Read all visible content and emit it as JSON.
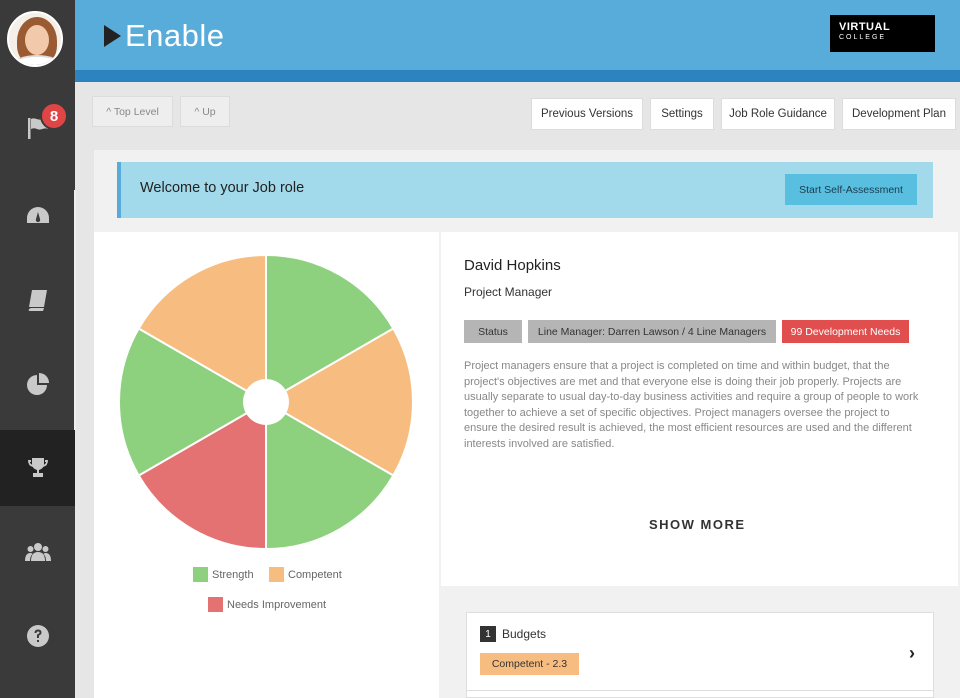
{
  "app": {
    "name": "Enable",
    "logo_line1": "VIRTUAL",
    "logo_line2": "COLLEGE"
  },
  "sidebar": {
    "notifications_count": "8",
    "items": [
      {
        "icon": "flag-icon"
      },
      {
        "icon": "dashboard-gauge-icon"
      },
      {
        "icon": "book-icon"
      },
      {
        "icon": "pie-chart-icon"
      },
      {
        "icon": "trophy-icon",
        "active": true
      },
      {
        "icon": "people-icon"
      },
      {
        "icon": "help-icon"
      }
    ]
  },
  "toolbar": {
    "top_level": "^ Top Level",
    "up": "^ Up",
    "previous_versions": "Previous Versions",
    "settings": "Settings",
    "job_role_guidance": "Job Role Guidance",
    "development_plan": "Development Plan"
  },
  "welcome": {
    "text": "Welcome to your Job role",
    "button": "Start Self-Assessment"
  },
  "chart_data": {
    "type": "pie",
    "style": "donut",
    "slices": [
      {
        "category": "Strength",
        "value": 1
      },
      {
        "category": "Competent",
        "value": 1
      },
      {
        "category": "Strength",
        "value": 1
      },
      {
        "category": "Needs Improvement",
        "value": 1
      },
      {
        "category": "Strength",
        "value": 1
      },
      {
        "category": "Competent",
        "value": 1
      }
    ],
    "legend": [
      {
        "label": "Strength",
        "color": "#8dd07e"
      },
      {
        "label": "Competent",
        "color": "#f7bd80"
      },
      {
        "label": "Needs Improvement",
        "color": "#e57272"
      }
    ]
  },
  "profile": {
    "name": "David Hopkins",
    "role": "Project Manager",
    "tags": {
      "status": "Status",
      "line_manager": "Line Manager: Darren Lawson / 4 Line Managers",
      "development_needs": "99 Development Needs"
    },
    "description": "Project managers ensure that a project is completed on time and within budget, that the project's objectives are met and that everyone else is doing their job properly. Projects are usually separate to usual day-to-day business activities and require a group of people to work together to achieve a set of specific objectives. Project managers oversee the project to ensure the desired result is achieved, the most efficient resources are used and the different interests involved are satisfied.",
    "show_more": "SHOW MORE"
  },
  "competencies": [
    {
      "number": "1",
      "title": "Budgets",
      "rating": "Competent - 2.3"
    }
  ]
}
